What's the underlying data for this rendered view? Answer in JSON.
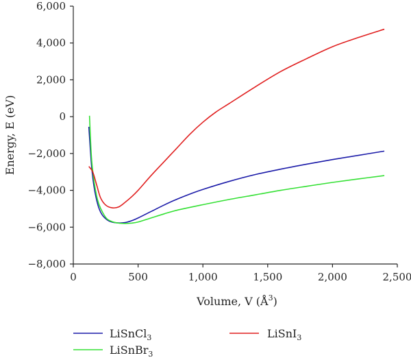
{
  "chart_data": {
    "type": "line",
    "xlabel": "Volume, V (Å",
    "xlabel_sup": "3",
    "xlabel_close": ")",
    "ylabel": "Energy, E (eV)",
    "xlim": [
      0,
      2500
    ],
    "ylim": [
      -8000,
      6000
    ],
    "x_ticks": [
      0,
      500,
      1000,
      1500,
      2000,
      2500
    ],
    "x_tick_labels": [
      "0",
      "500",
      "1,000",
      "1,500",
      "2,000",
      "2,500"
    ],
    "y_ticks": [
      -8000,
      -6000,
      -4000,
      -2000,
      0,
      2000,
      4000,
      6000
    ],
    "y_tick_labels": [
      "−8,000",
      "−6,000",
      "−4,000",
      "−2,000",
      "0",
      "2,000",
      "4,000",
      "6,000"
    ],
    "grid": false,
    "legend_placement": "bottom",
    "series": [
      {
        "name": "LiSnCl",
        "name_sub": "3",
        "color": "#1a1aa8",
        "x": [
          120,
          140,
          160,
          190,
          220,
          260,
          300,
          350,
          400,
          450,
          500,
          600,
          700,
          800,
          900,
          1000,
          1200,
          1400,
          1600,
          1800,
          2000,
          2200,
          2400
        ],
        "y": [
          -550,
          -2600,
          -3800,
          -4800,
          -5300,
          -5600,
          -5730,
          -5770,
          -5750,
          -5650,
          -5500,
          -5150,
          -4800,
          -4480,
          -4200,
          -3950,
          -3520,
          -3150,
          -2850,
          -2580,
          -2330,
          -2100,
          -1870
        ]
      },
      {
        "name": "LiSnBr",
        "name_sub": "3",
        "color": "#33e033",
        "x": [
          125,
          140,
          160,
          180,
          200,
          230,
          260,
          300,
          350,
          400,
          450,
          500,
          600,
          700,
          800,
          1000,
          1200,
          1400,
          1600,
          1800,
          2000,
          2200,
          2400
        ],
        "y": [
          50,
          -2200,
          -3500,
          -4300,
          -4800,
          -5250,
          -5550,
          -5700,
          -5780,
          -5800,
          -5780,
          -5720,
          -5500,
          -5280,
          -5080,
          -4780,
          -4500,
          -4250,
          -4000,
          -3780,
          -3570,
          -3380,
          -3200
        ]
      },
      {
        "name": "LiSnI",
        "name_sub": "3",
        "color": "#e01e1e",
        "x": [
          120,
          150,
          180,
          210,
          250,
          300,
          350,
          400,
          450,
          500,
          600,
          700,
          800,
          900,
          1000,
          1100,
          1200,
          1400,
          1600,
          1800,
          2000,
          2200,
          2400
        ],
        "y": [
          -2700,
          -3000,
          -3700,
          -4400,
          -4800,
          -4950,
          -4900,
          -4650,
          -4350,
          -4000,
          -3200,
          -2450,
          -1700,
          -950,
          -300,
          250,
          700,
          1600,
          2450,
          3150,
          3800,
          4300,
          4750
        ]
      }
    ]
  }
}
